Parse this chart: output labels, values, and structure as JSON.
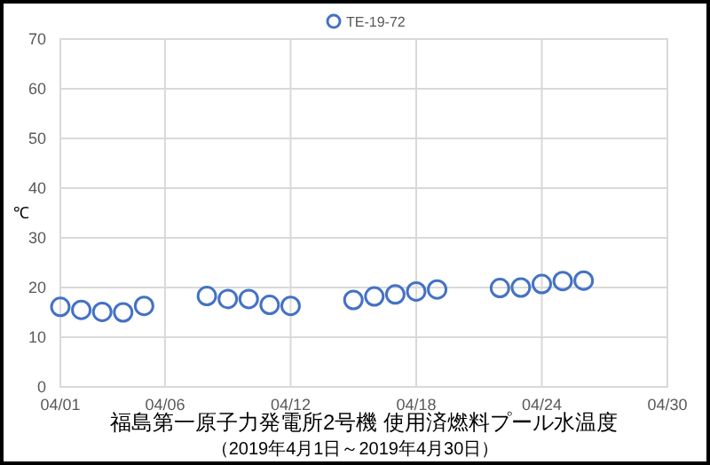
{
  "chart_data": {
    "type": "scatter",
    "title": "福島第一原子力発電所2号機 使用済燃料プール水温度",
    "subtitle": "（2019年4月1日～2019年4月30日）",
    "ylabel": "℃",
    "marker": "circle",
    "grid": true,
    "legend": "top",
    "xlim": [
      "2019-04-01",
      "2019-04-30"
    ],
    "xticks": [
      {
        "value": "2019-04-01",
        "label": "04/01"
      },
      {
        "value": "2019-04-06",
        "label": "04/06"
      },
      {
        "value": "2019-04-12",
        "label": "04/12"
      },
      {
        "value": "2019-04-18",
        "label": "04/18"
      },
      {
        "value": "2019-04-24",
        "label": "04/24"
      },
      {
        "value": "2019-04-30",
        "label": "04/30"
      }
    ],
    "ylim": [
      0,
      70
    ],
    "yticks": [
      0,
      10,
      20,
      30,
      40,
      50,
      60,
      70
    ],
    "x": [
      "2019-04-01",
      "2019-04-02",
      "2019-04-03",
      "2019-04-04",
      "2019-04-05",
      "2019-04-08",
      "2019-04-09",
      "2019-04-10",
      "2019-04-11",
      "2019-04-12",
      "2019-04-15",
      "2019-04-16",
      "2019-04-17",
      "2019-04-18",
      "2019-04-19",
      "2019-04-22",
      "2019-04-23",
      "2019-04-24",
      "2019-04-25",
      "2019-04-26"
    ],
    "series": [
      {
        "name": "TE-19-72",
        "color": "#4472c4",
        "values": [
          16.1,
          15.5,
          15.1,
          15.0,
          16.3,
          18.3,
          17.7,
          17.7,
          16.5,
          16.3,
          17.5,
          18.2,
          18.6,
          19.2,
          19.6,
          19.9,
          20.0,
          20.7,
          21.3,
          21.4
        ]
      }
    ]
  }
}
